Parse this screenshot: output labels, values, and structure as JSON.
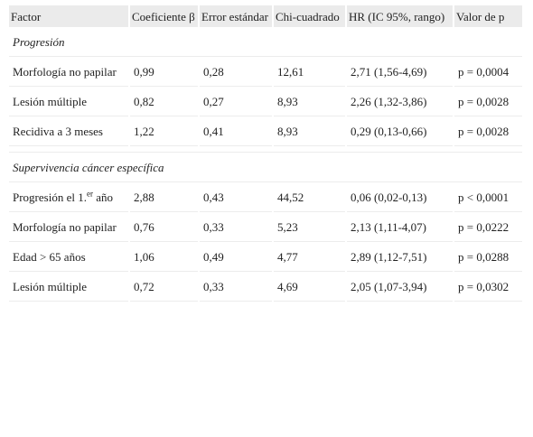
{
  "headers": [
    "Factor",
    "Coeficiente β",
    "Error estándar",
    "Chi-cuadrado",
    "HR (IC 95%, rango)",
    "Valor de p"
  ],
  "sections": [
    {
      "title": "Progresión",
      "rows": [
        {
          "factor": " Morfología no papilar",
          "coef": "0,99",
          "err": "0,28",
          "chi": "12,61",
          "hr": "2,71 (1,56-4,69)",
          "p": "p = 0,0004"
        },
        {
          "factor": " Lesión múltiple",
          "coef": "0,82",
          "err": "0,27",
          "chi": "8,93",
          "hr": "2,26 (1,32-3,86)",
          "p": "p = 0,0028"
        },
        {
          "factor": " Recidiva a 3 meses",
          "coef": "1,22",
          "err": "0,41",
          "chi": "8,93",
          "hr": "0,29 (0,13-0,66)",
          "p": "p = 0,0028"
        }
      ]
    },
    {
      "title": "Supervivencia cáncer específica",
      "rows": [
        {
          "factor_pre": " Progresión el 1.",
          "factor_sup": "er",
          "factor_post": " año",
          "coef": "2,88",
          "err": "0,43",
          "chi": "44,52",
          "hr": "0,06 (0,02-0,13)",
          "p": "p < 0,0001"
        },
        {
          "factor": " Morfología no papilar",
          "coef": "0,76",
          "err": "0,33",
          "chi": "5,23",
          "hr": "2,13 (1,11-4,07)",
          "p": "p = 0,0222"
        },
        {
          "factor": " Edad > 65 años",
          "coef": "1,06",
          "err": "0,49",
          "chi": "4,77",
          "hr": "2,89 (1,12-7,51)",
          "p": "p = 0,0288"
        },
        {
          "factor": " Lesión múltiple",
          "coef": "0,72",
          "err": "0,33",
          "chi": "4,69",
          "hr": "2,05 (1,07-3,94)",
          "p": "p = 0,0302"
        }
      ]
    }
  ]
}
